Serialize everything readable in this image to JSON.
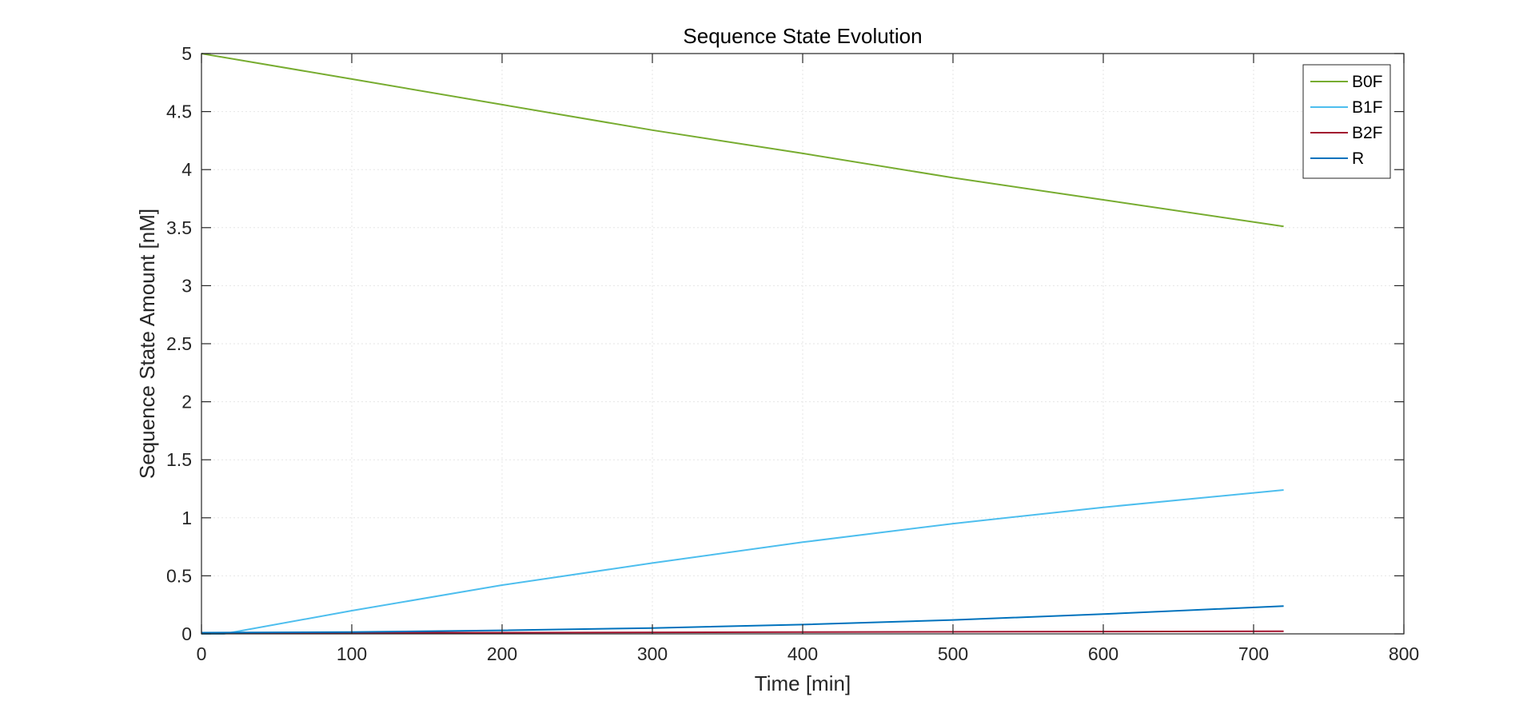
{
  "chart_data": {
    "type": "line",
    "title": "Sequence State Evolution",
    "xlabel": "Time [min]",
    "ylabel": "Sequence State Amount [nM]",
    "xlim": [
      0,
      800
    ],
    "ylim": [
      0,
      5
    ],
    "xticks": [
      0,
      100,
      200,
      300,
      400,
      500,
      600,
      700,
      800
    ],
    "yticks": [
      0,
      0.5,
      1,
      1.5,
      2,
      2.5,
      3,
      3.5,
      4,
      4.5,
      5
    ],
    "xtick_labels": [
      "0",
      "100",
      "200",
      "300",
      "400",
      "500",
      "600",
      "700",
      "800"
    ],
    "ytick_labels": [
      "0",
      "0.5",
      "1",
      "1.5",
      "2",
      "2.5",
      "3",
      "3.5",
      "4",
      "4.5",
      "5"
    ],
    "grid": true,
    "legend_position": "top-right",
    "series": [
      {
        "name": "B0F",
        "color": "#77AC30",
        "x": [
          0,
          100,
          200,
          300,
          400,
          500,
          600,
          720
        ],
        "y": [
          5.0,
          4.78,
          4.56,
          4.34,
          4.14,
          3.93,
          3.74,
          3.51
        ]
      },
      {
        "name": "B1F",
        "color": "#4DBEEE",
        "x": [
          0,
          15,
          100,
          200,
          300,
          400,
          500,
          600,
          720
        ],
        "y": [
          0.0,
          0.0,
          0.2,
          0.42,
          0.61,
          0.79,
          0.95,
          1.09,
          1.24
        ]
      },
      {
        "name": "B2F",
        "color": "#A2142F",
        "x": [
          0,
          200,
          400,
          600,
          720
        ],
        "y": [
          0.01,
          0.01,
          0.015,
          0.02,
          0.022
        ]
      },
      {
        "name": "R",
        "color": "#0072BD",
        "x": [
          0,
          100,
          200,
          300,
          400,
          500,
          600,
          720
        ],
        "y": [
          0.01,
          0.015,
          0.03,
          0.05,
          0.08,
          0.12,
          0.17,
          0.24
        ]
      }
    ]
  }
}
